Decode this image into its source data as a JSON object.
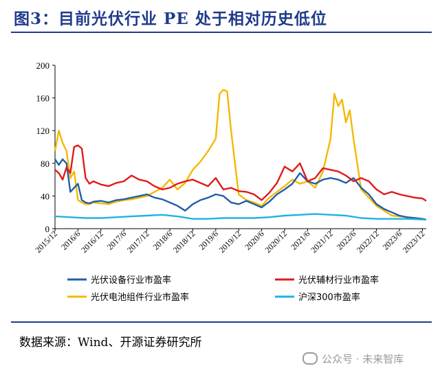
{
  "header": {
    "title": "图3：目前光伏行业 PE 处于相对历史低位"
  },
  "footer": {
    "source": "数据来源：Wind、开源证券研究所",
    "watermark": "公众号 · 未来智库"
  },
  "chart_data": {
    "type": "line",
    "title": "图3：目前光伏行业 PE 处于相对历史低位",
    "xlabel": "",
    "ylabel": "",
    "ylim": [
      0,
      200
    ],
    "yticks": [
      0,
      40,
      80,
      120,
      160,
      200
    ],
    "xlim": [
      0,
      97
    ],
    "xticks": [
      {
        "x": 0,
        "label": "2015/12"
      },
      {
        "x": 6,
        "label": "2016/6"
      },
      {
        "x": 12,
        "label": "2016/12"
      },
      {
        "x": 18,
        "label": "2017/6"
      },
      {
        "x": 24,
        "label": "2017/12"
      },
      {
        "x": 30,
        "label": "2018/6"
      },
      {
        "x": 36,
        "label": "2018/12"
      },
      {
        "x": 42,
        "label": "2019/6"
      },
      {
        "x": 48,
        "label": "2019/12"
      },
      {
        "x": 54,
        "label": "2020/6"
      },
      {
        "x": 60,
        "label": "2020/12"
      },
      {
        "x": 66,
        "label": "2021/6"
      },
      {
        "x": 72,
        "label": "2021/12"
      },
      {
        "x": 78,
        "label": "2022/6"
      },
      {
        "x": 84,
        "label": "2022/12"
      },
      {
        "x": 90,
        "label": "2023/6"
      },
      {
        "x": 96,
        "label": "2023/12"
      }
    ],
    "grid": false,
    "legend_position": "bottom",
    "series": [
      {
        "name": "光伏设备行业市盈率",
        "color": "#1f5fa8",
        "x": [
          0,
          1,
          2,
          3,
          4,
          5,
          6,
          7,
          8,
          9,
          10,
          12,
          14,
          16,
          18,
          20,
          22,
          24,
          26,
          28,
          30,
          32,
          34,
          36,
          38,
          40,
          42,
          44,
          46,
          48,
          50,
          52,
          54,
          56,
          58,
          60,
          62,
          64,
          66,
          68,
          70,
          72,
          74,
          76,
          78,
          80,
          82,
          84,
          86,
          88,
          90,
          92,
          94,
          96,
          97
        ],
        "y": [
          85,
          78,
          85,
          80,
          45,
          50,
          55,
          35,
          32,
          31,
          33,
          34,
          32,
          35,
          36,
          38,
          40,
          42,
          38,
          36,
          32,
          28,
          22,
          30,
          35,
          38,
          42,
          40,
          32,
          30,
          34,
          30,
          26,
          33,
          42,
          48,
          55,
          68,
          58,
          55,
          60,
          62,
          60,
          56,
          62,
          50,
          42,
          30,
          24,
          20,
          16,
          14,
          13,
          12,
          11
        ]
      },
      {
        "name": "光伏辅材行业市盈率",
        "color": "#e01a1a",
        "x": [
          0,
          1,
          2,
          3,
          4,
          5,
          6,
          7,
          8,
          9,
          10,
          12,
          14,
          16,
          18,
          20,
          22,
          24,
          26,
          28,
          30,
          32,
          34,
          36,
          38,
          40,
          42,
          44,
          46,
          48,
          50,
          52,
          54,
          56,
          58,
          60,
          62,
          64,
          66,
          68,
          70,
          72,
          74,
          76,
          78,
          80,
          82,
          84,
          86,
          88,
          90,
          92,
          94,
          96,
          97
        ],
        "y": [
          72,
          68,
          60,
          75,
          68,
          100,
          102,
          98,
          62,
          55,
          58,
          54,
          52,
          56,
          58,
          65,
          60,
          58,
          52,
          48,
          50,
          55,
          58,
          60,
          56,
          52,
          62,
          48,
          50,
          46,
          45,
          42,
          35,
          44,
          56,
          76,
          70,
          80,
          58,
          62,
          74,
          72,
          70,
          65,
          58,
          62,
          58,
          48,
          42,
          45,
          42,
          40,
          38,
          37,
          34
        ]
      },
      {
        "name": "光伏电池组件行业市盈率",
        "color": "#f5b800",
        "x": [
          0,
          1,
          2,
          3,
          4,
          5,
          6,
          7,
          8,
          9,
          10,
          12,
          14,
          16,
          18,
          20,
          22,
          24,
          26,
          28,
          30,
          32,
          34,
          36,
          38,
          40,
          42,
          43,
          44,
          45,
          46,
          48,
          50,
          52,
          54,
          56,
          58,
          60,
          62,
          64,
          66,
          68,
          70,
          72,
          73,
          74,
          75,
          76,
          77,
          78,
          80,
          82,
          84,
          86,
          88,
          90,
          92,
          94,
          96,
          97
        ],
        "y": [
          95,
          120,
          105,
          95,
          62,
          70,
          35,
          32,
          30,
          30,
          32,
          31,
          30,
          33,
          35,
          36,
          38,
          40,
          45,
          50,
          60,
          48,
          56,
          72,
          82,
          95,
          110,
          165,
          170,
          168,
          120,
          42,
          35,
          32,
          28,
          38,
          45,
          52,
          60,
          55,
          58,
          50,
          70,
          110,
          165,
          150,
          158,
          130,
          145,
          110,
          48,
          38,
          28,
          22,
          16,
          15,
          14,
          13,
          12,
          11
        ]
      },
      {
        "name": "沪深300市盈率",
        "color": "#20b2e0",
        "x": [
          0,
          4,
          8,
          12,
          16,
          20,
          24,
          28,
          32,
          36,
          40,
          44,
          48,
          52,
          56,
          60,
          64,
          68,
          72,
          76,
          80,
          84,
          88,
          92,
          97
        ],
        "y": [
          15,
          14,
          13,
          13,
          14,
          15,
          16,
          17,
          15,
          12,
          12,
          13,
          13,
          13,
          14,
          16,
          17,
          18,
          17,
          16,
          13,
          12,
          12,
          12,
          11
        ]
      }
    ]
  }
}
